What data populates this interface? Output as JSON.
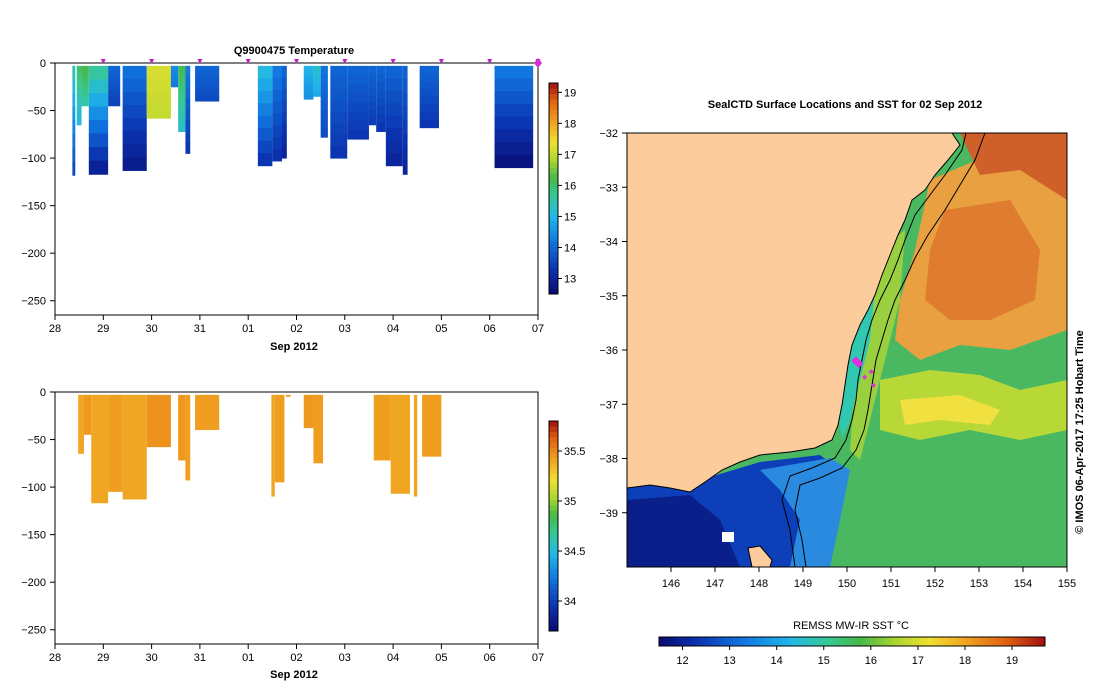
{
  "chart_data": [
    {
      "type": "heatmap",
      "title": "Q9900475  Temperature",
      "xlabel": "Sep 2012",
      "ylabel": "",
      "x_ticks": [
        "28",
        "29",
        "30",
        "31",
        "01",
        "02",
        "03",
        "04",
        "05",
        "06",
        "07"
      ],
      "x_range": [
        28,
        38
      ],
      "y_ticks": [
        "0",
        "−50",
        "−100",
        "−150",
        "−200",
        "−250"
      ],
      "ylim": [
        -265,
        0
      ],
      "colorbar": {
        "ticks": [
          "13",
          "14",
          "15",
          "16",
          "17",
          "18",
          "19"
        ],
        "range": [
          12.5,
          19.3
        ]
      },
      "profile_markers": [
        29.0,
        30.0,
        31.0,
        32.0,
        33.0,
        34.0,
        35.0,
        36.0,
        37.0,
        38.0
      ],
      "profiles": [
        {
          "x0": 28.36,
          "x1": 28.42,
          "depth": 118,
          "top_temp": 15.5,
          "bottom_temp": 13.5
        },
        {
          "x0": 28.45,
          "x1": 28.55,
          "depth": 65,
          "top_temp": 16.0,
          "bottom_temp": 15.0
        },
        {
          "x0": 28.55,
          "x1": 28.7,
          "depth": 45,
          "top_temp": 16.3,
          "bottom_temp": 15.5
        },
        {
          "x0": 28.7,
          "x1": 29.1,
          "depth": 117,
          "top_temp": 15.8,
          "bottom_temp": 12.8
        },
        {
          "x0": 29.1,
          "x1": 29.35,
          "depth": 45,
          "top_temp": 14.0,
          "bottom_temp": 13.5
        },
        {
          "x0": 29.4,
          "x1": 29.9,
          "depth": 113,
          "top_temp": 14.2,
          "bottom_temp": 12.8
        },
        {
          "x0": 29.9,
          "x1": 30.4,
          "depth": 58,
          "top_temp": 17.2,
          "bottom_temp": 17.0
        },
        {
          "x0": 30.4,
          "x1": 30.55,
          "depth": 25,
          "top_temp": 14.5,
          "bottom_temp": 14.2
        },
        {
          "x0": 30.55,
          "x1": 30.7,
          "depth": 72,
          "top_temp": 16.2,
          "bottom_temp": 15.2
        },
        {
          "x0": 30.7,
          "x1": 30.8,
          "depth": 95,
          "top_temp": 14.3,
          "bottom_temp": 13.3
        },
        {
          "x0": 30.9,
          "x1": 31.4,
          "depth": 40,
          "top_temp": 14.0,
          "bottom_temp": 13.6
        },
        {
          "x0": 32.2,
          "x1": 32.5,
          "depth": 108,
          "top_temp": 15.2,
          "bottom_temp": 13.2
        },
        {
          "x0": 32.5,
          "x1": 32.7,
          "depth": 103,
          "top_temp": 14.3,
          "bottom_temp": 13.2
        },
        {
          "x0": 32.7,
          "x1": 32.8,
          "depth": 100,
          "top_temp": 14.0,
          "bottom_temp": 13.0
        },
        {
          "x0": 33.15,
          "x1": 33.35,
          "depth": 38,
          "top_temp": 15.0,
          "bottom_temp": 14.5
        },
        {
          "x0": 33.35,
          "x1": 33.5,
          "depth": 35,
          "top_temp": 15.3,
          "bottom_temp": 14.8
        },
        {
          "x0": 33.5,
          "x1": 33.65,
          "depth": 78,
          "top_temp": 14.2,
          "bottom_temp": 13.6
        },
        {
          "x0": 33.7,
          "x1": 34.05,
          "depth": 100,
          "top_temp": 14.0,
          "bottom_temp": 13.3
        },
        {
          "x0": 34.05,
          "x1": 34.5,
          "depth": 80,
          "top_temp": 14.0,
          "bottom_temp": 13.3
        },
        {
          "x0": 34.5,
          "x1": 34.65,
          "depth": 65,
          "top_temp": 14.0,
          "bottom_temp": 13.4
        },
        {
          "x0": 34.65,
          "x1": 34.85,
          "depth": 72,
          "top_temp": 14.0,
          "bottom_temp": 13.3
        },
        {
          "x0": 34.85,
          "x1": 35.2,
          "depth": 108,
          "top_temp": 14.0,
          "bottom_temp": 13.0
        },
        {
          "x0": 35.2,
          "x1": 35.3,
          "depth": 117,
          "top_temp": 14.0,
          "bottom_temp": 13.0
        },
        {
          "x0": 35.55,
          "x1": 35.95,
          "depth": 68,
          "top_temp": 14.0,
          "bottom_temp": 13.3
        },
        {
          "x0": 37.1,
          "x1": 37.9,
          "depth": 110,
          "top_temp": 14.3,
          "bottom_temp": 12.6
        }
      ]
    },
    {
      "type": "heatmap",
      "title": "",
      "xlabel": "Sep 2012",
      "ylabel": "",
      "x_ticks": [
        "28",
        "29",
        "30",
        "31",
        "01",
        "02",
        "03",
        "04",
        "05",
        "06",
        "07"
      ],
      "x_range": [
        28,
        38
      ],
      "y_ticks": [
        "0",
        "−50",
        "−100",
        "−150",
        "−200",
        "−250"
      ],
      "ylim": [
        -265,
        0
      ],
      "colorbar": {
        "ticks": [
          "34",
          "34.5",
          "35",
          "35.5"
        ],
        "range": [
          33.7,
          35.8
        ]
      },
      "profiles": [
        {
          "x0": 28.48,
          "x1": 28.6,
          "depth": 65,
          "value": 35.55
        },
        {
          "x0": 28.6,
          "x1": 28.75,
          "depth": 45,
          "value": 35.6
        },
        {
          "x0": 28.75,
          "x1": 29.1,
          "depth": 117,
          "value": 35.55
        },
        {
          "x0": 29.1,
          "x1": 29.4,
          "depth": 105,
          "value": 35.58
        },
        {
          "x0": 29.4,
          "x1": 29.9,
          "depth": 113,
          "value": 35.55
        },
        {
          "x0": 29.9,
          "x1": 30.4,
          "depth": 58,
          "value": 35.62
        },
        {
          "x0": 30.55,
          "x1": 30.7,
          "depth": 72,
          "value": 35.6
        },
        {
          "x0": 30.7,
          "x1": 30.8,
          "depth": 93,
          "value": 35.58
        },
        {
          "x0": 30.9,
          "x1": 31.4,
          "depth": 40,
          "value": 35.58
        },
        {
          "x0": 32.48,
          "x1": 32.55,
          "depth": 110,
          "value": 35.55
        },
        {
          "x0": 32.55,
          "x1": 32.75,
          "depth": 95,
          "value": 35.58
        },
        {
          "x0": 32.78,
          "x1": 32.88,
          "depth": 5,
          "value": 35.58
        },
        {
          "x0": 33.15,
          "x1": 33.35,
          "depth": 38,
          "value": 35.6
        },
        {
          "x0": 33.35,
          "x1": 33.55,
          "depth": 75,
          "value": 35.58
        },
        {
          "x0": 34.6,
          "x1": 34.95,
          "depth": 72,
          "value": 35.58
        },
        {
          "x0": 34.95,
          "x1": 35.35,
          "depth": 107,
          "value": 35.55
        },
        {
          "x0": 35.43,
          "x1": 35.5,
          "depth": 110,
          "value": 35.55
        },
        {
          "x0": 35.6,
          "x1": 36.0,
          "depth": 68,
          "value": 35.58
        }
      ]
    },
    {
      "type": "heatmap",
      "title": "SealCTD Surface Locations and SST for 02 Sep 2012",
      "xlabel": "",
      "ylabel": "",
      "x_ticks": [
        "146",
        "147",
        "148",
        "149",
        "150",
        "151",
        "152",
        "153",
        "154",
        "155"
      ],
      "xlim": [
        145.0,
        155.0
      ],
      "y_ticks": [
        "−32",
        "−33",
        "−34",
        "−35",
        "−36",
        "−37",
        "−38",
        "−39"
      ],
      "ylim": [
        -40.0,
        -32.0
      ],
      "colorbar": {
        "label": "REMSS MW-IR SST °C",
        "ticks": [
          "12",
          "13",
          "14",
          "15",
          "16",
          "17",
          "18",
          "19"
        ],
        "range": [
          11.5,
          19.7
        ]
      },
      "seal_locations": [
        {
          "lon": 150.2,
          "lat": -36.2
        },
        {
          "lon": 150.27,
          "lat": -36.25
        },
        {
          "lon": 150.4,
          "lat": -36.5
        },
        {
          "lon": 150.55,
          "lat": -36.4
        },
        {
          "lon": 150.6,
          "lat": -36.65
        }
      ]
    }
  ],
  "credit": "©  IMOS 06-Apr-2017 17:25 Hobart Time"
}
